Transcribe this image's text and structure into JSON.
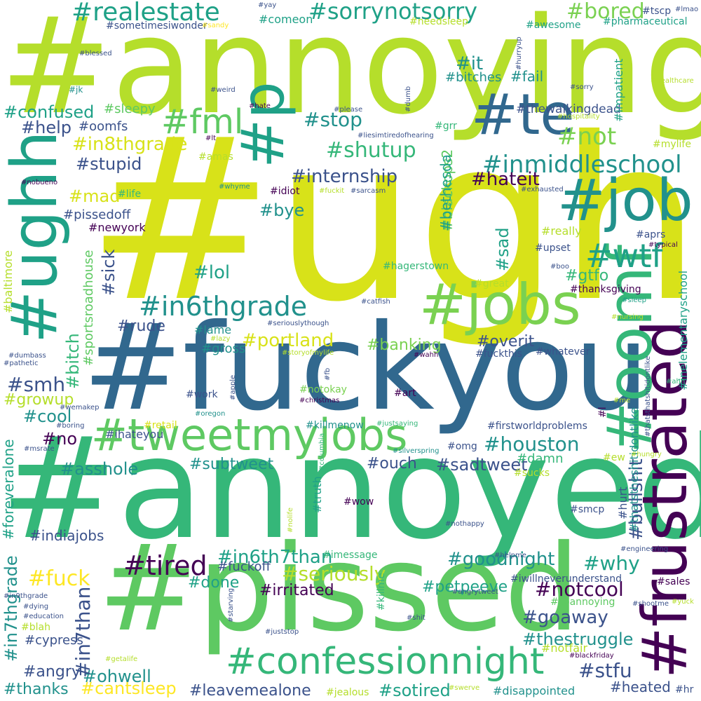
{
  "palette": {
    "dark_purple": "#440154",
    "indigo": "#3b528b",
    "blue": "#31688e",
    "teal": "#21918c",
    "green_teal": "#1fa187",
    "green": "#35b779",
    "light_green": "#5ec962",
    "lime": "#7ad151",
    "yellow_green": "#b5de2b",
    "yellow": "#d8e219",
    "bright_yellow": "#fde725"
  },
  "words": [
    {
      "text": "#annoying",
      "color": "yellow_green"
    },
    {
      "text": "#ugh",
      "color": "yellow"
    },
    {
      "text": "#fuckyou",
      "color": "blue"
    },
    {
      "text": "#annoyed",
      "color": "green"
    },
    {
      "text": "#pissed",
      "color": "light_green"
    },
    {
      "text": "#ughh",
      "color": "green_teal"
    },
    {
      "text": "#frustrated",
      "color": "dark_purple"
    },
    {
      "text": "#job",
      "color": "teal"
    },
    {
      "text": "#jobs",
      "color": "lime"
    },
    {
      "text": "#te",
      "color": "blue"
    },
    {
      "text": "#p",
      "color": "green_teal"
    },
    {
      "text": "#oomf",
      "color": "green"
    },
    {
      "text": "#tweetmyjobs",
      "color": "light_green"
    },
    {
      "text": "#confessionnight",
      "color": "green"
    },
    {
      "text": "#fml",
      "color": "light_green"
    },
    {
      "text": "#realestate",
      "color": "green_teal"
    },
    {
      "text": "#sorrynotsorry",
      "color": "green_teal"
    },
    {
      "text": "#in6thgrade",
      "color": "teal"
    },
    {
      "text": "#inmiddleschool",
      "color": "teal"
    },
    {
      "text": "#wtf",
      "color": "green_teal"
    },
    {
      "text": "#tired",
      "color": "dark_purple"
    },
    {
      "text": "#bored",
      "color": "lime"
    },
    {
      "text": "#not",
      "color": "lime"
    },
    {
      "text": "#shutup",
      "color": "green"
    },
    {
      "text": "#stop",
      "color": "teal"
    },
    {
      "text": "#it",
      "color": "teal"
    },
    {
      "text": "#internship",
      "color": "indigo"
    },
    {
      "text": "#hateit",
      "color": "dark_purple"
    },
    {
      "text": "#in8thgrade",
      "color": "yellow"
    },
    {
      "text": "#stupid",
      "color": "indigo"
    },
    {
      "text": "#confused",
      "color": "green_teal"
    },
    {
      "text": "#help",
      "color": "indigo"
    },
    {
      "text": "#oomfs",
      "color": "indigo"
    },
    {
      "text": "#fail",
      "color": "teal"
    },
    {
      "text": "#bitches",
      "color": "teal"
    },
    {
      "text": "#sleepy",
      "color": "light_green"
    },
    {
      "text": "#thewalkingdead",
      "color": "indigo"
    },
    {
      "text": "#houston",
      "color": "teal"
    },
    {
      "text": "#goaway",
      "color": "indigo"
    },
    {
      "text": "#thestruggle",
      "color": "teal"
    },
    {
      "text": "#stfu",
      "color": "indigo"
    },
    {
      "text": "#heated",
      "color": "indigo"
    },
    {
      "text": "#sotired",
      "color": "green_teal"
    },
    {
      "text": "#leavemealone",
      "color": "indigo"
    },
    {
      "text": "#ohwell",
      "color": "teal"
    },
    {
      "text": "#cantsleep",
      "color": "bright_yellow"
    },
    {
      "text": "#thanks",
      "color": "teal"
    },
    {
      "text": "#angry",
      "color": "indigo"
    },
    {
      "text": "#cypress",
      "color": "indigo"
    },
    {
      "text": "#fuck",
      "color": "bright_yellow"
    },
    {
      "text": "#indiajobs",
      "color": "indigo"
    },
    {
      "text": "#asshole",
      "color": "teal"
    },
    {
      "text": "#no",
      "color": "dark_purple"
    },
    {
      "text": "#cool",
      "color": "teal"
    },
    {
      "text": "#growup",
      "color": "yellow_green"
    },
    {
      "text": "#smh",
      "color": "indigo"
    },
    {
      "text": "#rude",
      "color": "indigo"
    },
    {
      "text": "#lol",
      "color": "green_teal"
    },
    {
      "text": "#bye",
      "color": "teal"
    },
    {
      "text": "#mad",
      "color": "yellow"
    },
    {
      "text": "#pissedoff",
      "color": "indigo"
    },
    {
      "text": "#newyork",
      "color": "dark_purple"
    },
    {
      "text": "#bullshit",
      "color": "indigo"
    },
    {
      "text": "#seriously",
      "color": "yellow_green"
    },
    {
      "text": "#irritated",
      "color": "dark_purple"
    },
    {
      "text": "#in6th7than",
      "color": "green_teal"
    },
    {
      "text": "#goodnight",
      "color": "teal"
    },
    {
      "text": "#why",
      "color": "green_teal"
    },
    {
      "text": "#notcool",
      "color": "dark_purple"
    },
    {
      "text": "#petpeeve",
      "color": "green_teal"
    },
    {
      "text": "#done",
      "color": "green_teal"
    },
    {
      "text": "#fuckoff",
      "color": "indigo"
    },
    {
      "text": "#portland",
      "color": "yellow"
    },
    {
      "text": "#banking",
      "color": "lime"
    },
    {
      "text": "#overit",
      "color": "indigo"
    },
    {
      "text": "#gross",
      "color": "teal"
    },
    {
      "text": "#lame",
      "color": "teal"
    },
    {
      "text": "#sadtweet",
      "color": "indigo"
    },
    {
      "text": "#ouch",
      "color": "indigo"
    },
    {
      "text": "#subtweet",
      "color": "teal"
    },
    {
      "text": "#damn",
      "color": "green"
    },
    {
      "text": "#gtfo",
      "color": "green"
    },
    {
      "text": "#sad",
      "color": "green_teal"
    },
    {
      "text": "#sick",
      "color": "indigo"
    },
    {
      "text": "#bitch",
      "color": "green"
    },
    {
      "text": "#in7than",
      "color": "indigo"
    },
    {
      "text": "#in7thgrade",
      "color": "teal"
    },
    {
      "text": "#foreveralone",
      "color": "green_teal"
    },
    {
      "text": "#blackops2",
      "color": "light_green"
    },
    {
      "text": "#bethesda",
      "color": "green_teal"
    },
    {
      "text": "#sportsroadhouse",
      "color": "light_green"
    },
    {
      "text": "#impatient",
      "color": "green_teal"
    },
    {
      "text": "#thatstheshitidontlike",
      "color": "teal"
    },
    {
      "text": "#inelementaryschool",
      "color": "green_teal"
    },
    {
      "text": "#baltimore",
      "color": "yellow_green"
    },
    {
      "text": "#truth",
      "color": "green_teal"
    },
    {
      "text": "#killme",
      "color": "green"
    },
    {
      "text": "#ihateyou",
      "color": "indigo"
    },
    {
      "text": "#comeon",
      "color": "green_teal"
    },
    {
      "text": "#sometimesiwonder",
      "color": "indigo"
    },
    {
      "text": "#needsleep",
      "color": "yellow_green"
    },
    {
      "text": "#awesome",
      "color": "green_teal"
    },
    {
      "text": "#pharmaceutical",
      "color": "green_teal"
    },
    {
      "text": "#tscp",
      "color": "indigo"
    },
    {
      "text": "#lmao",
      "color": "indigo"
    },
    {
      "text": "#yay",
      "color": "indigo"
    },
    {
      "text": "#sandy",
      "color": "bright_yellow"
    },
    {
      "text": "#blessed",
      "color": "indigo"
    },
    {
      "text": "#jk",
      "color": "teal"
    },
    {
      "text": "#weird",
      "color": "indigo"
    },
    {
      "text": "#hurryup",
      "color": "indigo"
    },
    {
      "text": "#sorry",
      "color": "indigo"
    },
    {
      "text": "#healthcare",
      "color": "yellow_green"
    },
    {
      "text": "#hate",
      "color": "dark_purple"
    },
    {
      "text": "#please",
      "color": "indigo"
    },
    {
      "text": "#dumb",
      "color": "indigo"
    },
    {
      "text": "#hospitality",
      "color": "yellow_green"
    },
    {
      "text": "#lt",
      "color": "dark_purple"
    },
    {
      "text": "#amas",
      "color": "yellow_green"
    },
    {
      "text": "#grr",
      "color": "green"
    },
    {
      "text": "#liesimtiredofhearing",
      "color": "indigo"
    },
    {
      "text": "#mylife",
      "color": "yellow_green"
    },
    {
      "text": "#nobueno",
      "color": "dark_purple"
    },
    {
      "text": "#whyme",
      "color": "teal"
    },
    {
      "text": "#idiot",
      "color": "dark_purple"
    },
    {
      "text": "#fuckit",
      "color": "yellow_green"
    },
    {
      "text": "#sarcasm",
      "color": "indigo"
    },
    {
      "text": "#exhausted",
      "color": "indigo"
    },
    {
      "text": "#life",
      "color": "green"
    },
    {
      "text": "#really",
      "color": "yellow_green"
    },
    {
      "text": "#aprs",
      "color": "indigo"
    },
    {
      "text": "#typical",
      "color": "dark_purple"
    },
    {
      "text": "#upset",
      "color": "indigo"
    },
    {
      "text": "#boo",
      "color": "indigo"
    },
    {
      "text": "#hagerstown",
      "color": "green"
    },
    {
      "text": "#great",
      "color": "yellow_green"
    },
    {
      "text": "#thanksgiving",
      "color": "dark_purple"
    },
    {
      "text": "#sleep",
      "color": "green_teal"
    },
    {
      "text": "#catfish",
      "color": "indigo"
    },
    {
      "text": "#nursing",
      "color": "yellow_green"
    },
    {
      "text": "#seriouslythough",
      "color": "indigo"
    },
    {
      "text": "#lazy",
      "color": "yellow_green"
    },
    {
      "text": "#storyofmylife",
      "color": "yellow_green"
    },
    {
      "text": "#fuckthis",
      "color": "indigo"
    },
    {
      "text": "#whatever",
      "color": "indigo"
    },
    {
      "text": "#wahh",
      "color": "dark_purple"
    },
    {
      "text": "#dumbass",
      "color": "indigo"
    },
    {
      "text": "#pathetic",
      "color": "indigo"
    },
    {
      "text": "#ahh",
      "color": "green"
    },
    {
      "text": "#thatsthatshitidontlike",
      "color": "indigo"
    },
    {
      "text": "#work",
      "color": "indigo"
    },
    {
      "text": "#apple",
      "color": "indigo"
    },
    {
      "text": "#fb",
      "color": "indigo"
    },
    {
      "text": "#notokay",
      "color": "lime"
    },
    {
      "text": "#christmas",
      "color": "dark_purple"
    },
    {
      "text": "#art",
      "color": "dark_purple"
    },
    {
      "text": "#wemakep",
      "color": "indigo"
    },
    {
      "text": "#oregon",
      "color": "teal"
    },
    {
      "text": "#me",
      "color": "yellow_green"
    },
    {
      "text": "#l",
      "color": "dark_purple"
    },
    {
      "text": "#boring",
      "color": "indigo"
    },
    {
      "text": "#retail",
      "color": "yellow"
    },
    {
      "text": "#killmenow",
      "color": "teal"
    },
    {
      "text": "#justsaying",
      "color": "green"
    },
    {
      "text": "#firstworldproblems",
      "color": "indigo"
    },
    {
      "text": "#msrate",
      "color": "indigo"
    },
    {
      "text": "#columbia",
      "color": "green"
    },
    {
      "text": "#silverspring",
      "color": "teal"
    },
    {
      "text": "#omg",
      "color": "indigo"
    },
    {
      "text": "#hungry",
      "color": "yellow_green"
    },
    {
      "text": "#ew",
      "color": "yellow_green"
    },
    {
      "text": "#sucks",
      "color": "yellow_green"
    },
    {
      "text": "#wow",
      "color": "dark_purple"
    },
    {
      "text": "#nolife",
      "color": "yellow_green"
    },
    {
      "text": "#smcp",
      "color": "indigo"
    },
    {
      "text": "#hurt",
      "color": "indigo"
    },
    {
      "text": "#nothappy",
      "color": "indigo"
    },
    {
      "text": "#imessage",
      "color": "green"
    },
    {
      "text": "#helpme",
      "color": "indigo"
    },
    {
      "text": "#engineering",
      "color": "indigo"
    },
    {
      "text": "#iwillneverunderstand",
      "color": "indigo"
    },
    {
      "text": "#sales",
      "color": "dark_purple"
    },
    {
      "text": "#in9thgrade",
      "color": "indigo"
    },
    {
      "text": "#dying",
      "color": "indigo"
    },
    {
      "text": "#education",
      "color": "indigo"
    },
    {
      "text": "#blah",
      "color": "yellow_green"
    },
    {
      "text": "#angrytweet",
      "color": "indigo"
    },
    {
      "text": "#soannoying",
      "color": "light_green"
    },
    {
      "text": "#shootme",
      "color": "indigo"
    },
    {
      "text": "#yuck",
      "color": "yellow_green"
    },
    {
      "text": "#starving",
      "color": "indigo"
    },
    {
      "text": "#shit",
      "color": "indigo"
    },
    {
      "text": "#juststop",
      "color": "indigo"
    },
    {
      "text": "#getalife",
      "color": "yellow_green"
    },
    {
      "text": "#notfair",
      "color": "yellow_green"
    },
    {
      "text": "#blackfriday",
      "color": "dark_purple"
    },
    {
      "text": "#jealous",
      "color": "yellow_green"
    },
    {
      "text": "#swerve",
      "color": "yellow_green"
    },
    {
      "text": "#disappointed",
      "color": "teal"
    },
    {
      "text": "#hr",
      "color": "indigo"
    }
  ]
}
